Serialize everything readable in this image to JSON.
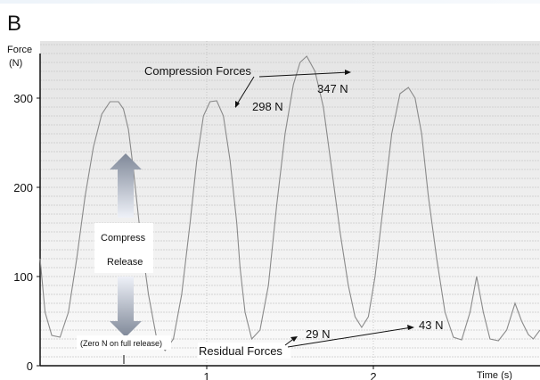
{
  "panel_label": "B",
  "chart_data": {
    "type": "line",
    "ylabel": "Force\n(N)",
    "xlabel": "Time (s)",
    "ylim": [
      0,
      350
    ],
    "xlim": [
      0,
      3
    ],
    "yticks": [
      0,
      100,
      200,
      300
    ],
    "xticks": [
      1,
      2
    ],
    "grid": true,
    "series": [
      {
        "x": [
          0.0,
          0.03,
          0.07,
          0.12,
          0.17,
          0.22,
          0.27,
          0.32,
          0.37,
          0.42,
          0.47,
          0.5,
          0.53,
          0.56,
          0.6,
          0.65,
          0.7,
          0.75,
          0.8,
          0.85,
          0.9,
          0.94,
          0.98,
          1.02,
          1.06,
          1.1,
          1.14,
          1.18,
          1.2,
          1.23,
          1.27,
          1.32,
          1.37,
          1.42,
          1.47,
          1.52,
          1.56,
          1.6,
          1.65,
          1.7,
          1.75,
          1.8,
          1.85,
          1.89,
          1.93,
          1.97,
          2.01,
          2.06,
          2.11,
          2.16,
          2.21,
          2.25,
          2.29,
          2.33,
          2.38,
          2.43,
          2.48,
          2.53,
          2.58,
          2.62,
          2.66,
          2.7,
          2.75,
          2.8,
          2.85,
          2.89,
          2.93,
          2.96,
          3.0
        ],
        "y": [
          120,
          60,
          34,
          32,
          60,
          120,
          190,
          245,
          282,
          296,
          296,
          288,
          265,
          220,
          150,
          80,
          30,
          17,
          30,
          80,
          160,
          230,
          280,
          296,
          297,
          280,
          230,
          160,
          110,
          60,
          30,
          40,
          90,
          180,
          260,
          315,
          340,
          347,
          330,
          290,
          220,
          150,
          90,
          55,
          43,
          55,
          100,
          180,
          260,
          305,
          312,
          300,
          260,
          190,
          120,
          60,
          32,
          29,
          60,
          100,
          60,
          30,
          28,
          40,
          70,
          50,
          35,
          30,
          40
        ]
      }
    ],
    "annotations": {
      "compression_label": "Compression Forces",
      "compression_peak_1": "298 N",
      "compression_peak_2": "347 N",
      "residual_label": "Residual Forces",
      "residual_1": "29 N",
      "residual_2": "43 N"
    }
  },
  "legend_box": {
    "compress": "Compress",
    "release": "Release"
  },
  "note": "(Zero N on full release)",
  "colors": {
    "plot_background": "#efefef",
    "grid_line": "#c9c9c9",
    "trace": "#8a8a8a",
    "arrow_top": "#7f8898",
    "arrow_light": "#e9edf6"
  }
}
